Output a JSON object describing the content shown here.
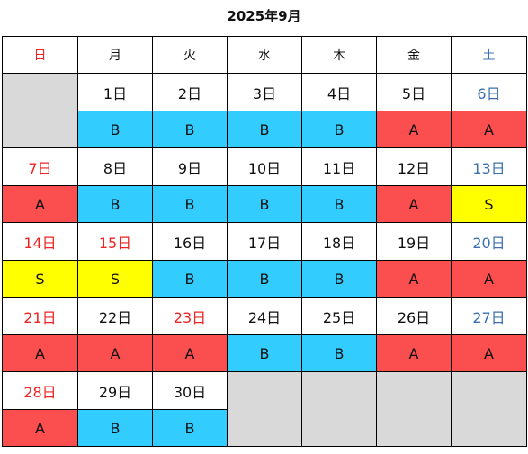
{
  "title": "2025年9月",
  "weekdays": [
    "日",
    "月",
    "火",
    "水",
    "木",
    "金",
    "土"
  ],
  "colors": {
    "A": "#fb4e4e",
    "B": "#33ccff",
    "S": "#ffff00",
    "holiday_text": "#ee2222",
    "saturday_text": "#3a6fb0",
    "empty_cell": "#d9d9d9"
  },
  "weeks": [
    [
      null,
      {
        "date": "1日",
        "tag": "B"
      },
      {
        "date": "2日",
        "tag": "B"
      },
      {
        "date": "3日",
        "tag": "B"
      },
      {
        "date": "4日",
        "tag": "B"
      },
      {
        "date": "5日",
        "tag": "A"
      },
      {
        "date": "6日",
        "tag": "A"
      }
    ],
    [
      {
        "date": "7日",
        "tag": "A"
      },
      {
        "date": "8日",
        "tag": "B"
      },
      {
        "date": "9日",
        "tag": "B"
      },
      {
        "date": "10日",
        "tag": "B"
      },
      {
        "date": "11日",
        "tag": "B"
      },
      {
        "date": "12日",
        "tag": "A"
      },
      {
        "date": "13日",
        "tag": "S"
      }
    ],
    [
      {
        "date": "14日",
        "tag": "S"
      },
      {
        "date": "15日",
        "tag": "S"
      },
      {
        "date": "16日",
        "tag": "B"
      },
      {
        "date": "17日",
        "tag": "B"
      },
      {
        "date": "18日",
        "tag": "B"
      },
      {
        "date": "19日",
        "tag": "A"
      },
      {
        "date": "20日",
        "tag": "A"
      }
    ],
    [
      {
        "date": "21日",
        "tag": "A"
      },
      {
        "date": "22日",
        "tag": "A"
      },
      {
        "date": "23日",
        "tag": "A"
      },
      {
        "date": "24日",
        "tag": "B"
      },
      {
        "date": "25日",
        "tag": "B"
      },
      {
        "date": "26日",
        "tag": "A"
      },
      {
        "date": "27日",
        "tag": "A"
      }
    ],
    [
      {
        "date": "28日",
        "tag": "A"
      },
      {
        "date": "29日",
        "tag": "B"
      },
      {
        "date": "30日",
        "tag": "B"
      },
      null,
      null,
      null,
      null
    ]
  ],
  "red_dates": [
    "7日",
    "14日",
    "15日",
    "21日",
    "23日",
    "28日"
  ],
  "blue_dates": [
    "6日",
    "13日",
    "20日",
    "27日"
  ]
}
